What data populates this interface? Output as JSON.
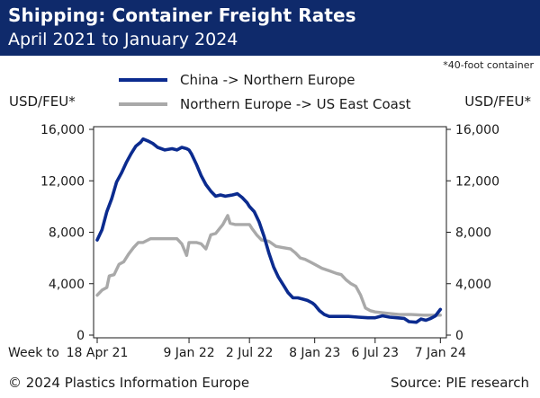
{
  "header": {
    "title": "Shipping: Container Freight Rates",
    "subtitle": "April 2021 to January 2024"
  },
  "footnote": "*40-foot container",
  "footer": {
    "copyright": "© 2024 Plastics Information Europe",
    "source": "Source: PIE research"
  },
  "chart_data": {
    "type": "line",
    "xlabel": "Week to",
    "ylabel_left": "USD/FEU*",
    "ylabel_right": "USD/FEU*",
    "ylim": [
      0,
      16000
    ],
    "yticks": [
      0,
      4000,
      8000,
      12000,
      16000
    ],
    "ytick_labels": [
      "0",
      "4,000",
      "8,000",
      "12,000",
      "16,000"
    ],
    "xtick_labels": [
      "18 Apr 21",
      "9 Jan 22",
      "2 Jul 22",
      "8 Jan 23",
      "6 Jul 23",
      "7 Jan 24"
    ],
    "xticks": [
      0,
      38,
      63,
      90,
      115,
      142
    ],
    "x_range": [
      0,
      143
    ],
    "grid": false,
    "legend_position": "top",
    "colors": {
      "china_ne": "#0b2b8f",
      "ne_us": "#a9a9a9"
    },
    "series": [
      {
        "name": "China -> Northern Europe",
        "color": "#0b2b8f",
        "points": [
          [
            0,
            7400
          ],
          [
            2,
            8200
          ],
          [
            4,
            9600
          ],
          [
            6,
            10600
          ],
          [
            8,
            11900
          ],
          [
            10,
            12600
          ],
          [
            12,
            13400
          ],
          [
            14,
            14100
          ],
          [
            16,
            14700
          ],
          [
            18,
            15000
          ],
          [
            19,
            15250
          ],
          [
            21,
            15100
          ],
          [
            23,
            14900
          ],
          [
            25,
            14600
          ],
          [
            28,
            14400
          ],
          [
            31,
            14500
          ],
          [
            33,
            14400
          ],
          [
            35,
            14600
          ],
          [
            37,
            14500
          ],
          [
            38,
            14400
          ],
          [
            39,
            14100
          ],
          [
            41,
            13300
          ],
          [
            43,
            12400
          ],
          [
            45,
            11700
          ],
          [
            47,
            11200
          ],
          [
            49,
            10800
          ],
          [
            51,
            10900
          ],
          [
            53,
            10800
          ],
          [
            56,
            10900
          ],
          [
            58,
            11000
          ],
          [
            60,
            10700
          ],
          [
            62,
            10300
          ],
          [
            63,
            10000
          ],
          [
            65,
            9600
          ],
          [
            67,
            8800
          ],
          [
            69,
            7700
          ],
          [
            71,
            6400
          ],
          [
            73,
            5300
          ],
          [
            75,
            4500
          ],
          [
            77,
            3900
          ],
          [
            79,
            3300
          ],
          [
            81,
            2900
          ],
          [
            83,
            2900
          ],
          [
            85,
            2800
          ],
          [
            87,
            2700
          ],
          [
            89,
            2500
          ],
          [
            90,
            2350
          ],
          [
            92,
            1900
          ],
          [
            94,
            1600
          ],
          [
            96,
            1450
          ],
          [
            100,
            1450
          ],
          [
            104,
            1450
          ],
          [
            108,
            1400
          ],
          [
            112,
            1350
          ],
          [
            115,
            1350
          ],
          [
            118,
            1500
          ],
          [
            121,
            1400
          ],
          [
            124,
            1350
          ],
          [
            127,
            1300
          ],
          [
            129,
            1050
          ],
          [
            132,
            1000
          ],
          [
            134,
            1250
          ],
          [
            136,
            1150
          ],
          [
            138,
            1300
          ],
          [
            140,
            1500
          ],
          [
            142,
            2000
          ]
        ]
      },
      {
        "name": "Northern Europe -> US East Coast",
        "color": "#a9a9a9",
        "points": [
          [
            0,
            3100
          ],
          [
            2,
            3500
          ],
          [
            4,
            3700
          ],
          [
            5,
            4600
          ],
          [
            7,
            4700
          ],
          [
            9,
            5500
          ],
          [
            11,
            5700
          ],
          [
            13,
            6300
          ],
          [
            15,
            6800
          ],
          [
            17,
            7200
          ],
          [
            19,
            7200
          ],
          [
            22,
            7500
          ],
          [
            25,
            7500
          ],
          [
            28,
            7500
          ],
          [
            31,
            7500
          ],
          [
            33,
            7500
          ],
          [
            35,
            7100
          ],
          [
            37,
            6200
          ],
          [
            38,
            7200
          ],
          [
            41,
            7200
          ],
          [
            43,
            7100
          ],
          [
            45,
            6700
          ],
          [
            47,
            7800
          ],
          [
            49,
            7900
          ],
          [
            52,
            8600
          ],
          [
            54,
            9300
          ],
          [
            55,
            8700
          ],
          [
            57,
            8600
          ],
          [
            60,
            8600
          ],
          [
            63,
            8600
          ],
          [
            64,
            8300
          ],
          [
            66,
            7800
          ],
          [
            68,
            7400
          ],
          [
            71,
            7300
          ],
          [
            74,
            6900
          ],
          [
            77,
            6800
          ],
          [
            80,
            6700
          ],
          [
            82,
            6400
          ],
          [
            84,
            6000
          ],
          [
            86,
            5900
          ],
          [
            88,
            5700
          ],
          [
            90,
            5500
          ],
          [
            93,
            5200
          ],
          [
            96,
            5000
          ],
          [
            99,
            4800
          ],
          [
            101,
            4700
          ],
          [
            103,
            4300
          ],
          [
            105,
            4000
          ],
          [
            107,
            3800
          ],
          [
            109,
            3100
          ],
          [
            111,
            2100
          ],
          [
            113,
            1900
          ],
          [
            115,
            1800
          ],
          [
            120,
            1700
          ],
          [
            125,
            1600
          ],
          [
            130,
            1600
          ],
          [
            135,
            1550
          ],
          [
            140,
            1550
          ],
          [
            142,
            1550
          ]
        ]
      }
    ]
  }
}
